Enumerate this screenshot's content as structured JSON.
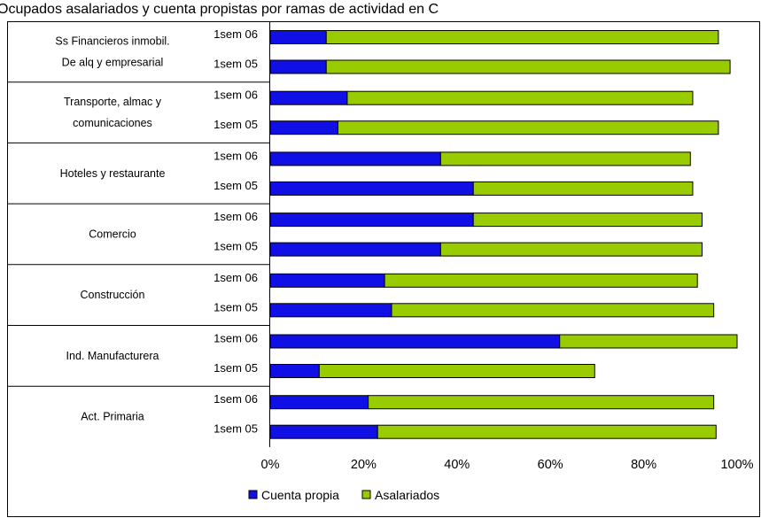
{
  "chart_data": {
    "type": "bar",
    "orientation": "horizontal",
    "stacked": true,
    "title": "Ocupados  asalariados y cuenta propistas  por ramas de actividad en  C",
    "xlim": [
      0,
      100
    ],
    "x_ticks": [
      "0%",
      "20%",
      "40%",
      "60%",
      "80%",
      "100%"
    ],
    "grid": false,
    "legend_position": "bottom",
    "groups": [
      {
        "label_lines": [
          "Ss Financieros inmobil.",
          "De alq y empresarial"
        ],
        "rows": [
          {
            "period": "1sem 06",
            "values": [
              12,
              84
            ]
          },
          {
            "period": "1sem 05",
            "values": [
              12,
              86.5
            ]
          }
        ]
      },
      {
        "label_lines": [
          "Transporte, almac y",
          "comunicaciones"
        ],
        "rows": [
          {
            "period": "1sem 06",
            "values": [
              16.5,
              74
            ]
          },
          {
            "period": "1sem 05",
            "values": [
              14.5,
              81.5
            ]
          }
        ]
      },
      {
        "label_lines": [
          "Hoteles y restaurante"
        ],
        "rows": [
          {
            "period": "1sem 06",
            "values": [
              36.5,
              53.5
            ]
          },
          {
            "period": "1sem 05",
            "values": [
              43.5,
              47
            ]
          }
        ]
      },
      {
        "label_lines": [
          "Comercio"
        ],
        "rows": [
          {
            "period": "1sem 06",
            "values": [
              43.5,
              49
            ]
          },
          {
            "period": "1sem 05",
            "values": [
              36.5,
              56
            ]
          }
        ]
      },
      {
        "label_lines": [
          "Construcción"
        ],
        "rows": [
          {
            "period": "1sem 06",
            "values": [
              24.5,
              67
            ]
          },
          {
            "period": "1sem 05",
            "values": [
              26,
              69
            ]
          }
        ]
      },
      {
        "label_lines": [
          "Ind. Manufacturera"
        ],
        "rows": [
          {
            "period": "1sem 06",
            "values": [
              62,
              38
            ]
          },
          {
            "period": "1sem 05",
            "values": [
              10.5,
              59
            ]
          }
        ]
      },
      {
        "label_lines": [
          "Act. Primaria"
        ],
        "rows": [
          {
            "period": "1sem 06",
            "values": [
              21,
              74
            ]
          },
          {
            "period": "1sem 05",
            "values": [
              23,
              72.5
            ]
          }
        ]
      }
    ],
    "series": [
      {
        "name": "Cuenta propia",
        "color": "#1010e6"
      },
      {
        "name": "Asalariados",
        "color": "#99cc00"
      }
    ]
  }
}
